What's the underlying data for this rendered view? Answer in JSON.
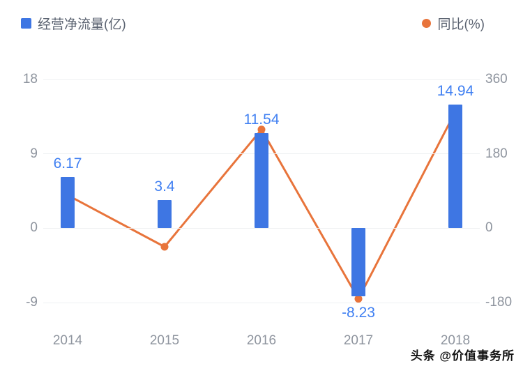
{
  "legend": {
    "bar": {
      "label": "经营净流量(亿)",
      "color": "#3e76e3"
    },
    "line": {
      "label": "同比(%)",
      "color": "#e8743b"
    }
  },
  "watermark": "头条 @价值事务所",
  "colors": {
    "grid": "#eef0f2",
    "axis_text": "#8e949e",
    "bar": "#3e76e3",
    "bar_label": "#3f7ff2",
    "line": "#e8743b"
  },
  "chart_data": {
    "type": "bar",
    "subtype": "bar+line combo, dual axis",
    "categories": [
      "2014",
      "2015",
      "2016",
      "2017",
      "2018"
    ],
    "series": [
      {
        "name": "经营净流量(亿)",
        "type": "bar",
        "axis": "left",
        "values": [
          6.17,
          3.4,
          11.54,
          -8.23,
          14.94
        ],
        "labels": [
          "6.17",
          "3.4",
          "11.54",
          "-8.23",
          "14.94"
        ],
        "color": "#3e76e3",
        "label_color": "#3f7ff2"
      },
      {
        "name": "同比(%)",
        "type": "line",
        "axis": "right",
        "values": [
          80,
          -45,
          239,
          -171,
          282
        ],
        "color": "#e8743b"
      }
    ],
    "left_axis": {
      "min": -9,
      "max": 18,
      "ticks": [
        18,
        9,
        0,
        -9
      ]
    },
    "right_axis": {
      "min": -180,
      "max": 360,
      "ticks": [
        360,
        180,
        0,
        -180
      ]
    },
    "grid": true,
    "legend_position": "top"
  }
}
